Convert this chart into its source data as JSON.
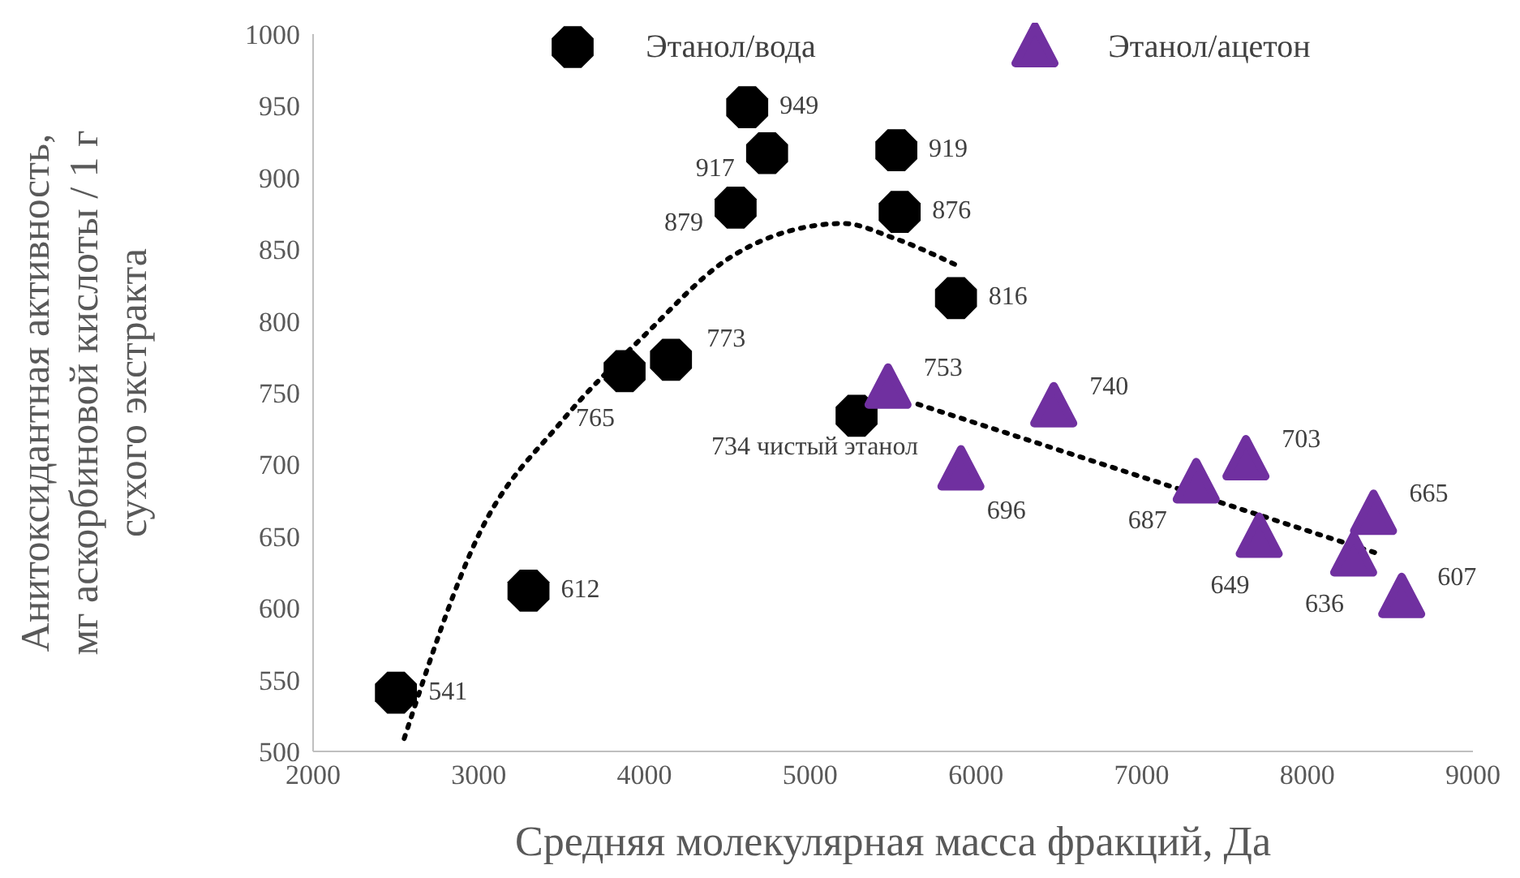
{
  "chart_data": {
    "type": "scatter",
    "xlabel": "Средняя молекулярная масса фракций, Да",
    "ylabel": "Анитоксидантная активность,\nмг аскорбиновой кислоты / 1 г\nсухого экстракта",
    "xlim": [
      2000,
      9000
    ],
    "xticks": [
      2000,
      3000,
      4000,
      5000,
      6000,
      7000,
      8000,
      9000
    ],
    "ylim": [
      500,
      1000
    ],
    "yticks": [
      500,
      550,
      600,
      650,
      700,
      750,
      800,
      850,
      900,
      950,
      1000
    ],
    "legend": "top",
    "series": [
      {
        "name": "Этанол/вода",
        "color": "#000000",
        "marker": "circle",
        "x": [
          2500,
          3300,
          3880,
          4160,
          4550,
          4620,
          4740,
          5520,
          5540,
          5880,
          5280
        ],
        "values": [
          541,
          612,
          765,
          773,
          879,
          949,
          917,
          919,
          876,
          816,
          734
        ],
        "value_labels": [
          "541",
          "612",
          "765",
          "773",
          "879",
          "949",
          "917",
          "919",
          "876",
          "816",
          "734 чистый этанол"
        ]
      },
      {
        "name": "Этанол/ацетон",
        "color": "#7030a0",
        "marker": "triangle",
        "x": [
          5470,
          5910,
          6470,
          7330,
          7630,
          7710,
          8280,
          8400,
          8570
        ],
        "values": [
          753,
          696,
          740,
          687,
          703,
          649,
          636,
          665,
          607
        ],
        "value_labels": [
          "753",
          "696",
          "740",
          "687",
          "703",
          "649",
          "636",
          "665",
          "607"
        ]
      },
      {
        "type": "line",
        "color": "#000000",
        "line_style": "dotted",
        "x": [
          2550,
          3000,
          3500,
          4000,
          4500,
          5000,
          5200,
          5500,
          5900
        ],
        "values": [
          509,
          651,
          730,
          790,
          843,
          866,
          868,
          858,
          838
        ]
      },
      {
        "type": "line",
        "color": "#000000",
        "line_style": "dotted",
        "x": [
          5650,
          8450
        ],
        "values": [
          742,
          637
        ]
      }
    ]
  }
}
